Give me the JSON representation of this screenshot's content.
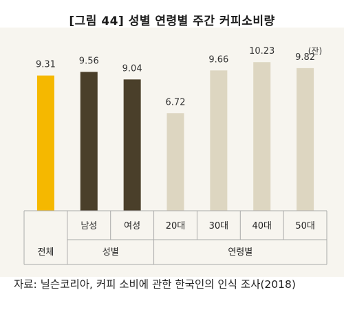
{
  "title": "[그림 44] 성별 연령별 주간 커피소비량",
  "unit": "(잔)",
  "source": "자료: 닐슨코리아, 커피 소비에 관한 한국인의 인식 조사(2018)",
  "colors": {
    "total": "#f5b800",
    "gender": "#4a3f2a",
    "age": "#ddd6c1",
    "background": "#f7f5ef",
    "grid": "#aaaaaa"
  },
  "chart_data": {
    "type": "bar",
    "title": "[그림 44] 성별 연령별 주간 커피소비량",
    "ylabel": "(잔)",
    "ylim": [
      0,
      11
    ],
    "categories": [
      "전체",
      "남성",
      "여성",
      "20대",
      "30대",
      "40대",
      "50대"
    ],
    "values": [
      9.31,
      9.56,
      9.04,
      6.72,
      9.66,
      10.23,
      9.82
    ],
    "value_labels": [
      "9.31",
      "9.56",
      "9.04",
      "6.72",
      "9.66",
      "10.23",
      "9.82"
    ],
    "groups": [
      {
        "label": "전체",
        "members": [
          "전체"
        ],
        "color_key": "total"
      },
      {
        "label": "성별",
        "members": [
          "남성",
          "여성"
        ],
        "color_key": "gender"
      },
      {
        "label": "연령별",
        "members": [
          "20대",
          "30대",
          "40대",
          "50대"
        ],
        "color_key": "age"
      }
    ],
    "grid": false,
    "legend": "none"
  }
}
